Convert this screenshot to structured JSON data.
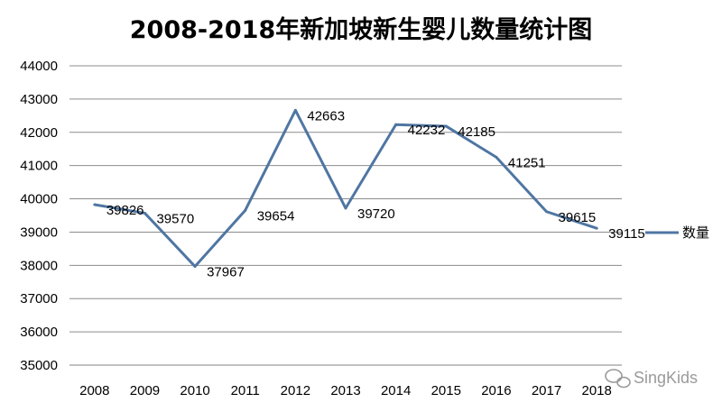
{
  "chart_data": {
    "type": "line",
    "title": "2008-2018年新加坡新生婴儿数量统计图",
    "categories": [
      "2008",
      "2009",
      "2010",
      "2011",
      "2012",
      "2013",
      "2014",
      "2015",
      "2016",
      "2017",
      "2018"
    ],
    "series": [
      {
        "name": "数量",
        "values": [
          39826,
          39570,
          37967,
          39654,
          42663,
          39720,
          42232,
          42185,
          41251,
          39615,
          39115
        ],
        "labels": [
          "39826",
          "39570",
          "37967",
          "39654",
          "42663",
          "39720",
          "42232",
          "42185",
          "41251",
          "39615",
          "39115"
        ],
        "color": "#4f76a3"
      }
    ],
    "yticks": [
      "44000",
      "43000",
      "42000",
      "41000",
      "40000",
      "39000",
      "38000",
      "37000",
      "36000",
      "35000"
    ],
    "ylim": [
      35000,
      44000
    ],
    "grid": true,
    "legend": "right"
  },
  "watermark": {
    "text": "SingKids",
    "icon": "wechat-icon"
  }
}
